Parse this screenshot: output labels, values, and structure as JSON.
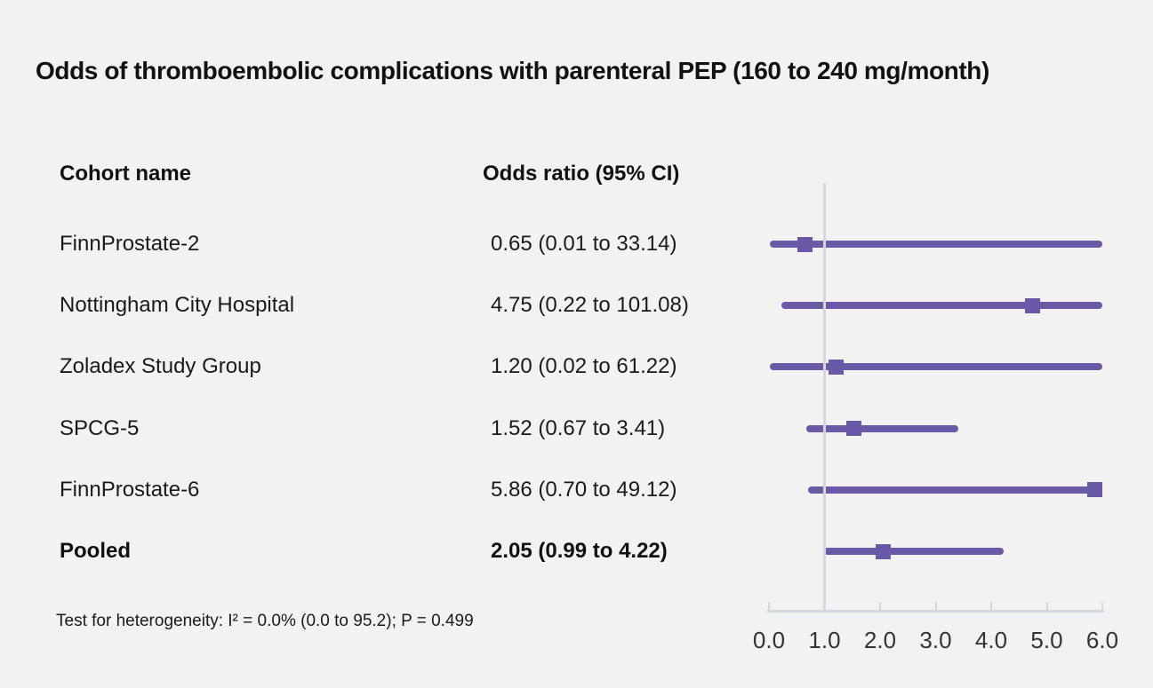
{
  "title": "Odds of thromboembolic complications with parenteral PEP (160 to 240 mg/month)",
  "columns": {
    "cohort": "Cohort name",
    "odds_ratio": "Odds ratio (95% CI)"
  },
  "footnote": "Test for heterogeneity: I² = 0.0% (0.0 to 95.2); P = 0.499",
  "colors": {
    "background": "#f2f2f2",
    "series": "#6a59a6",
    "axis": "#d3d8df",
    "text": "#1a1a1a",
    "tick_label": "#333333"
  },
  "chart_data": {
    "type": "forest",
    "title": "Odds of thromboembolic complications with parenteral PEP (160 to 240 mg/month)",
    "xlabel": "",
    "ylabel": "",
    "xlim": [
      0.0,
      6.0
    ],
    "grid": false,
    "reference_line_x": 1.0,
    "x_ticks": [
      0.0,
      1.0,
      2.0,
      3.0,
      4.0,
      5.0,
      6.0
    ],
    "x_tick_labels": [
      "0.0",
      "1.0",
      "2.0",
      "3.0",
      "4.0",
      "5.0",
      "6.0"
    ],
    "ci_clamped_to_xlim": true,
    "rows": [
      {
        "cohort": "FinnProstate-2",
        "label": "0.65 (0.01 to 33.14)",
        "or": 0.65,
        "ci_low": 0.01,
        "ci_high": 33.14,
        "bold": false
      },
      {
        "cohort": "Nottingham City Hospital",
        "label": "4.75 (0.22 to 101.08)",
        "or": 4.75,
        "ci_low": 0.22,
        "ci_high": 101.08,
        "bold": false
      },
      {
        "cohort": "Zoladex Study Group",
        "label": "1.20 (0.02 to 61.22)",
        "or": 1.2,
        "ci_low": 0.02,
        "ci_high": 61.22,
        "bold": false
      },
      {
        "cohort": "SPCG-5",
        "label": "1.52 (0.67 to 3.41)",
        "or": 1.52,
        "ci_low": 0.67,
        "ci_high": 3.41,
        "bold": false
      },
      {
        "cohort": "FinnProstate-6",
        "label": "5.86 (0.70 to 49.12)",
        "or": 5.86,
        "ci_low": 0.7,
        "ci_high": 49.12,
        "bold": false
      },
      {
        "cohort": "Pooled",
        "label": "2.05 (0.99 to 4.22)",
        "or": 2.05,
        "ci_low": 0.99,
        "ci_high": 4.22,
        "bold": true
      }
    ]
  }
}
